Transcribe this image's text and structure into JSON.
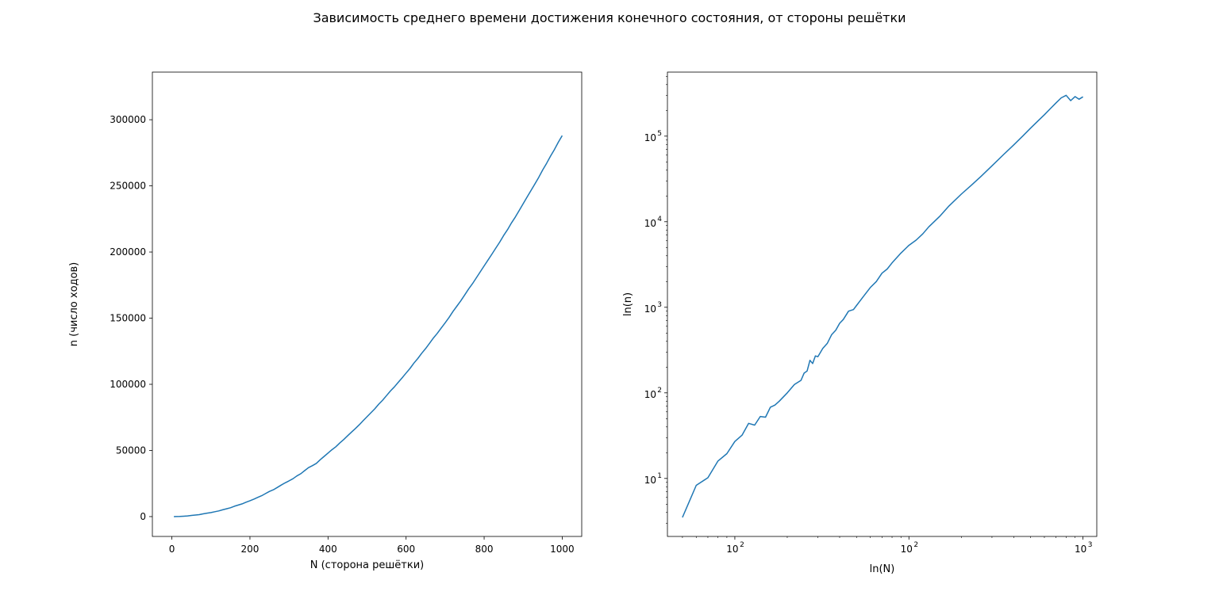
{
  "figure": {
    "suptitle": "Зависимость среднего времени достижения конечного состояния, от стороны решётки"
  },
  "chart_data": [
    {
      "type": "line",
      "xlabel": "N (сторона решётки)",
      "ylabel": "n (число ходов)",
      "xlim": [
        -50,
        1050
      ],
      "ylim": [
        -15000,
        336000
      ],
      "xticks": [
        0,
        200,
        400,
        600,
        800,
        1000
      ],
      "xtick_labels": [
        "0",
        "200",
        "400",
        "600",
        "800",
        "1000"
      ],
      "yticks": [
        0,
        50000,
        100000,
        150000,
        200000,
        250000,
        300000
      ],
      "ytick_labels": [
        "0",
        "50000",
        "100000",
        "150000",
        "200000",
        "250000",
        "300000"
      ],
      "series": [
        {
          "color": "#1f77b4",
          "x": [
            5,
            10,
            20,
            30,
            40,
            50,
            60,
            70,
            80,
            90,
            100,
            110,
            120,
            130,
            140,
            150,
            160,
            170,
            180,
            190,
            200,
            210,
            220,
            230,
            240,
            250,
            260,
            270,
            280,
            290,
            300,
            310,
            320,
            330,
            340,
            350,
            360,
            370,
            380,
            390,
            400,
            410,
            420,
            430,
            440,
            450,
            460,
            470,
            480,
            490,
            500,
            510,
            520,
            530,
            540,
            550,
            560,
            570,
            580,
            590,
            600,
            610,
            620,
            630,
            640,
            650,
            660,
            670,
            680,
            690,
            700,
            710,
            720,
            730,
            740,
            750,
            760,
            770,
            780,
            790,
            800,
            810,
            820,
            830,
            840,
            850,
            860,
            870,
            880,
            890,
            900,
            910,
            920,
            930,
            940,
            950,
            960,
            970,
            980,
            990,
            1000
          ],
          "y": [
            3.5,
            27,
            100,
            270,
            500,
            850,
            1150,
            1500,
            2100,
            2600,
            3000,
            3700,
            4300,
            5100,
            5900,
            6700,
            7800,
            8700,
            9600,
            10900,
            12000,
            13200,
            14500,
            15800,
            17400,
            19000,
            20300,
            22000,
            23800,
            25500,
            27000,
            28600,
            30700,
            32400,
            34700,
            37000,
            38500,
            40200,
            43000,
            45500,
            48000,
            50500,
            52800,
            55600,
            58200,
            61000,
            63800,
            66500,
            69400,
            72500,
            75500,
            78500,
            81500,
            85000,
            88000,
            91500,
            95000,
            98000,
            101500,
            105000,
            108500,
            112000,
            116000,
            119500,
            123500,
            127000,
            131000,
            135000,
            138500,
            142500,
            146500,
            150500,
            155000,
            159000,
            163000,
            167500,
            172000,
            176000,
            180500,
            185000,
            189500,
            194000,
            198500,
            203000,
            207500,
            212500,
            217000,
            222000,
            226500,
            231500,
            236500,
            241500,
            246500,
            251500,
            256500,
            262000,
            267000,
            272500,
            277500,
            283000,
            288000
          ]
        }
      ]
    },
    {
      "type": "line",
      "xscale": "log",
      "yscale": "log",
      "xlabel": "ln(N)",
      "ylabel": "ln(n)",
      "xlim": [
        4.1,
        1200
      ],
      "ylim": [
        2.1,
        560000
      ],
      "xticks": [
        10,
        100,
        1000
      ],
      "xtick_labels": [
        "10",
        "2",
        "10",
        "2",
        "10",
        "3"
      ],
      "yticks": [
        10,
        100,
        1000,
        10000,
        100000
      ],
      "ytick_labels": [
        "10",
        "1",
        "10",
        "2",
        "10",
        "3",
        "10",
        "4",
        "10",
        "5"
      ],
      "series": [
        {
          "color": "#1f77b4",
          "x": [
            5,
            6,
            7,
            8,
            9,
            10,
            11,
            12,
            13,
            14,
            15,
            16,
            17,
            18,
            20,
            22,
            24,
            25,
            26,
            27,
            28,
            29,
            30,
            32,
            34,
            36,
            38,
            40,
            42,
            45,
            48,
            50,
            55,
            60,
            65,
            70,
            75,
            80,
            90,
            100,
            110,
            120,
            130,
            150,
            170,
            200,
            230,
            260,
            300,
            350,
            400,
            450,
            500,
            550,
            600,
            650,
            700,
            750,
            800,
            850,
            900,
            950,
            1000
          ],
          "y": [
            3.5,
            8.3,
            10.2,
            16,
            19.5,
            27,
            32,
            44,
            42,
            53,
            52,
            68,
            72,
            80,
            100,
            125,
            140,
            170,
            180,
            240,
            220,
            270,
            265,
            330,
            380,
            480,
            540,
            650,
            720,
            900,
            940,
            1050,
            1350,
            1700,
            2000,
            2500,
            2800,
            3300,
            4300,
            5300,
            6100,
            7200,
            8700,
            11500,
            15300,
            21000,
            27000,
            34000,
            45000,
            61000,
            79000,
            100000,
            124000,
            150000,
            178000,
            210000,
            245000,
            280000,
            300000,
            260000,
            290000,
            270000,
            288000
          ]
        }
      ]
    }
  ]
}
